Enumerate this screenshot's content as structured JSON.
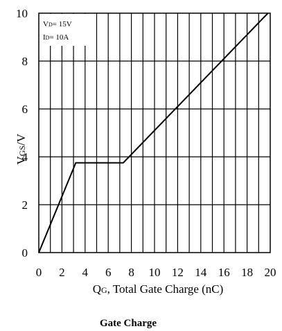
{
  "chart_data": {
    "type": "line",
    "title": "Gate Charge",
    "xlabel": {
      "main": "Q",
      "sub": "G",
      "rest": ", Total Gate Charge (nC)"
    },
    "ylabel": {
      "main": "V",
      "sub": "GS",
      "rest": "/V"
    },
    "xlim": [
      0,
      20
    ],
    "ylim": [
      0,
      10
    ],
    "xticks": [
      "0",
      "2",
      "4",
      "6",
      "8",
      "10",
      "12",
      "14",
      "16",
      "18",
      "20"
    ],
    "yticks": [
      "0",
      "2",
      "4",
      "6",
      "8",
      "10"
    ],
    "grid": true,
    "conditions": [
      {
        "main": "V",
        "sub": "D",
        "rest": "= 15V"
      },
      {
        "main": "I",
        "sub": "D",
        "rest": "= 10A"
      }
    ],
    "series": [
      {
        "x": [
          0,
          3.2,
          7.3,
          19.8
        ],
        "y": [
          0,
          3.75,
          3.75,
          10
        ]
      }
    ]
  }
}
